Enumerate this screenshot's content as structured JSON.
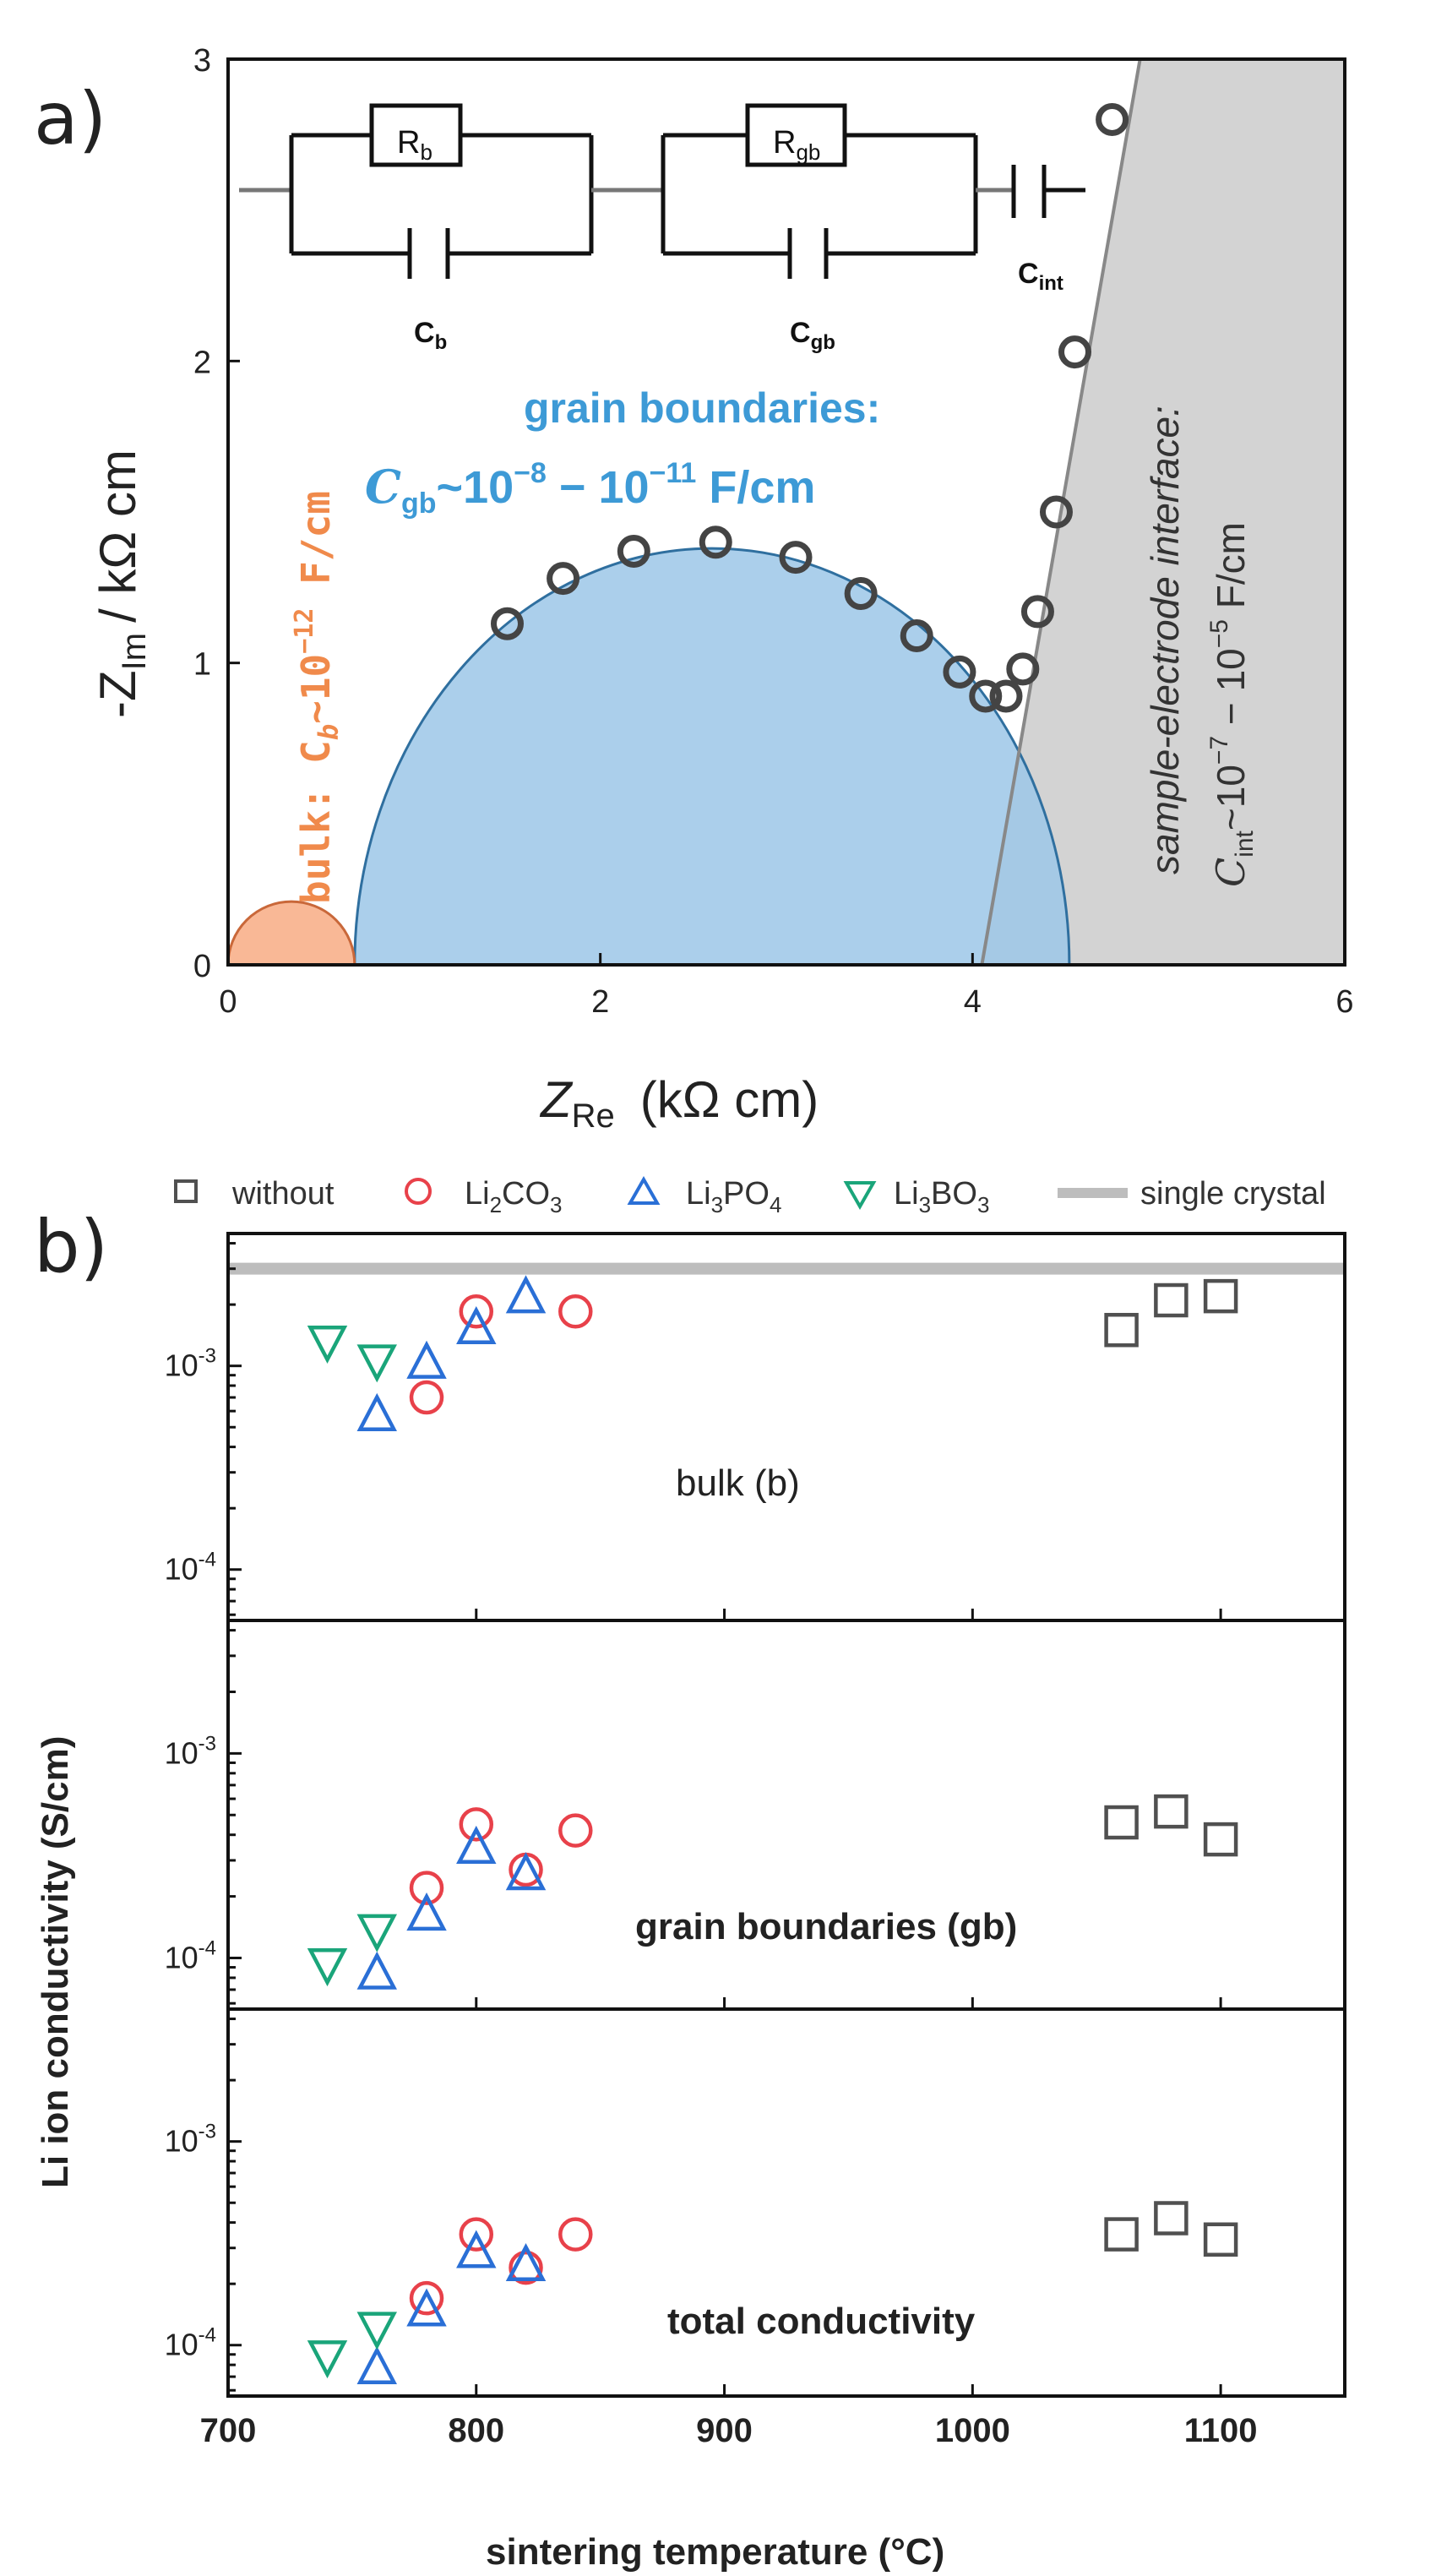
{
  "chart_data": [
    {
      "type": "scatter",
      "panel_label": "a)",
      "xlabel_main": "Z",
      "xlabel_sub": "Re",
      "xlabel_unit": "(kΩ cm)",
      "ylabel_main": "-Z",
      "ylabel_sub": "Im",
      "ylabel_unit": "/ kΩ cm",
      "xlim": [
        0,
        6
      ],
      "ylim": [
        0,
        3
      ],
      "xticks": [
        "0",
        "2",
        "4",
        "6"
      ],
      "yticks": [
        "0",
        "1",
        "2",
        "3"
      ],
      "measured_points": [
        {
          "x": 1.5,
          "y": 1.13
        },
        {
          "x": 1.8,
          "y": 1.28
        },
        {
          "x": 2.18,
          "y": 1.37
        },
        {
          "x": 2.62,
          "y": 1.4
        },
        {
          "x": 3.05,
          "y": 1.35
        },
        {
          "x": 3.4,
          "y": 1.23
        },
        {
          "x": 3.7,
          "y": 1.09
        },
        {
          "x": 3.93,
          "y": 0.97
        },
        {
          "x": 4.07,
          "y": 0.89
        },
        {
          "x": 4.18,
          "y": 0.89
        },
        {
          "x": 4.27,
          "y": 0.98
        },
        {
          "x": 4.35,
          "y": 1.17
        },
        {
          "x": 4.45,
          "y": 1.5
        },
        {
          "x": 4.55,
          "y": 2.03
        },
        {
          "x": 4.75,
          "y": 2.8
        }
      ],
      "bulk_arc": {
        "start": 0.0,
        "end": 0.68
      },
      "gb_arc": {
        "start": 0.68,
        "end": 4.52,
        "peak": 1.38
      },
      "interface_line": {
        "x0": 4.05,
        "y0": 0.0,
        "x1": 4.9,
        "y1": 3.0
      },
      "annotations": {
        "bulk": "bulk: C",
        "bulk_sub": "b",
        "bulk_value": "~10",
        "bulk_exp": "−12",
        "bulk_unit": " F/cm",
        "gb_title": "grain boundaries:",
        "gb_c": "C",
        "gb_sub": "gb",
        "gb_value": "~10",
        "gb_exp1": "−8",
        "gb_mid": " − 10",
        "gb_exp2": "−11",
        "gb_unit": " F/cm",
        "int_title": "sample-electrode interface:",
        "int_c": "C",
        "int_sub": "int",
        "int_value": "~10",
        "int_exp1": "−7",
        "int_mid": " − 10",
        "int_exp2": "−5",
        "int_unit": " F/cm"
      },
      "circuit": {
        "r_b": "R",
        "r_b_sub": "b",
        "r_gb": "R",
        "r_gb_sub": "gb",
        "c_b": "C",
        "c_b_sub": "b",
        "c_gb": "C",
        "c_gb_sub": "gb",
        "c_int": "C",
        "c_int_sub": "int"
      },
      "colors": {
        "bulk": "#f9b896",
        "bulk_text": "#f08a4b",
        "gb": "#9cc7e8",
        "gb_text": "#3d9ad6",
        "interface": "#d3d3d3",
        "points": "#444444"
      }
    },
    {
      "type": "scatter",
      "panel_label": "b)",
      "xlabel": "sintering temperature (°C)",
      "ylabel": "Li ion conductivity (S/cm)",
      "xlim": [
        700,
        1150
      ],
      "xticks": [
        "700",
        "800",
        "900",
        "1000",
        "1100"
      ],
      "xtick_values": [
        700,
        800,
        900,
        1000,
        1100
      ],
      "legend": [
        {
          "name": "without",
          "marker": "square",
          "color": "#505050"
        },
        {
          "name": "Li",
          "name_parts": [
            "Li",
            "2",
            "CO",
            "3"
          ],
          "marker": "circle",
          "color": "#e8414a"
        },
        {
          "name": "Li",
          "name_parts": [
            "Li",
            "3",
            "PO",
            "4"
          ],
          "marker": "triangle-up",
          "color": "#2a6fd6"
        },
        {
          "name": "Li",
          "name_parts": [
            "Li",
            "3",
            "BO",
            "3"
          ],
          "marker": "triangle-down",
          "color": "#1aa57a"
        },
        {
          "name": "single crystal",
          "marker": "line",
          "color": "#bdbdbd"
        }
      ],
      "subplots": [
        {
          "label": "bulk (b)",
          "ylim_log": [
            -4.25,
            -2.35
          ],
          "yticks": [
            {
              "base": "10",
              "exp": "-3",
              "v": -3
            },
            {
              "base": "10",
              "exp": "-4",
              "v": -4
            }
          ],
          "single_crystal": 0.003,
          "series": {
            "without": [
              [
                1060,
                0.0015
              ],
              [
                1080,
                0.0021
              ],
              [
                1100,
                0.0022
              ]
            ],
            "Li2CO3": [
              [
                780,
                0.0007
              ],
              [
                800,
                0.00185
              ],
              [
                840,
                0.00185
              ]
            ],
            "Li3PO4": [
              [
                760,
                0.00058
              ],
              [
                780,
                0.00105
              ],
              [
                800,
                0.00155
              ],
              [
                820,
                0.0022
              ]
            ],
            "Li3BO3": [
              [
                740,
                0.0013
              ],
              [
                760,
                0.00105
              ]
            ]
          }
        },
        {
          "label": "grain boundaries (gb)",
          "ylim_log": [
            -4.25,
            -2.35
          ],
          "yticks": [
            {
              "base": "10",
              "exp": "-3",
              "v": -3
            },
            {
              "base": "10",
              "exp": "-4",
              "v": -4
            }
          ],
          "series": {
            "without": [
              [
                1060,
                0.00046
              ],
              [
                1080,
                0.00052
              ],
              [
                1100,
                0.00038
              ]
            ],
            "Li2CO3": [
              [
                780,
                0.00022
              ],
              [
                800,
                0.00045
              ],
              [
                820,
                0.00027
              ],
              [
                840,
                0.00042
              ]
            ],
            "Li3PO4": [
              [
                760,
                8.5e-05
              ],
              [
                780,
                0.000165
              ],
              [
                800,
                0.00035
              ],
              [
                820,
                0.00026
              ]
            ],
            "Li3BO3": [
              [
                740,
                9.2e-05
              ],
              [
                760,
                0.000135
              ]
            ]
          }
        },
        {
          "label": "total conductivity",
          "ylim_log": [
            -4.25,
            -2.35
          ],
          "yticks": [
            {
              "base": "10",
              "exp": "-3",
              "v": -3
            },
            {
              "base": "10",
              "exp": "-4",
              "v": -4
            }
          ],
          "series": {
            "without": [
              [
                1060,
                0.00035
              ],
              [
                1080,
                0.00042
              ],
              [
                1100,
                0.00033
              ]
            ],
            "Li2CO3": [
              [
                780,
                0.00017
              ],
              [
                800,
                0.00035
              ],
              [
                820,
                0.00024
              ],
              [
                840,
                0.00035
              ]
            ],
            "Li3PO4": [
              [
                760,
                7.8e-05
              ],
              [
                780,
                0.00015
              ],
              [
                800,
                0.00029
              ],
              [
                820,
                0.00025
              ]
            ],
            "Li3BO3": [
              [
                740,
                8.7e-05
              ],
              [
                760,
                0.00012
              ]
            ]
          }
        }
      ]
    }
  ]
}
